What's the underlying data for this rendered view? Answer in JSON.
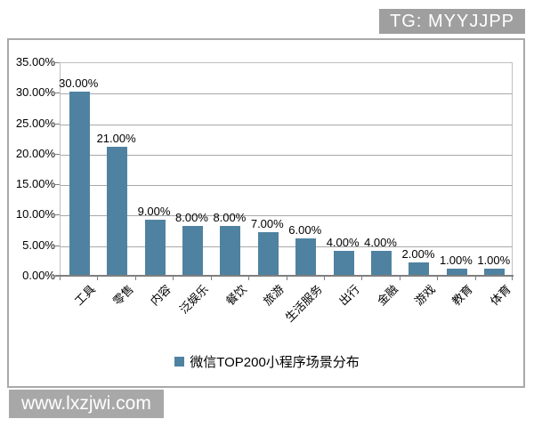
{
  "header": {
    "tg_badge": "TG: MYYJJPP"
  },
  "watermark": "www.lxzjwi.com",
  "colors": {
    "bar": "#4f82a1",
    "grid": "#a8a8a8",
    "axis": "#7f7f7f",
    "badge_bg": "#9f9f9f",
    "frame_border": "#a9a9a9"
  },
  "chart_data": {
    "type": "bar",
    "title": "",
    "categories": [
      "工具",
      "零售",
      "内容",
      "泛娱乐",
      "餐饮",
      "旅游",
      "生活服务",
      "出行",
      "金融",
      "游戏",
      "教育",
      "体育"
    ],
    "values": [
      30,
      21,
      9,
      8,
      8,
      7,
      6,
      4,
      4,
      2,
      1,
      1
    ],
    "value_labels": [
      "30.00%",
      "21.00%",
      "9.00%",
      "8.00%",
      "8.00%",
      "7.00%",
      "6.00%",
      "4.00%",
      "4.00%",
      "2.00%",
      "1.00%",
      "1.00%"
    ],
    "y_ticks": [
      "35.00%",
      "30.00%",
      "25.00%",
      "20.00%",
      "15.00%",
      "10.00%",
      "5.00%",
      "0.00%"
    ],
    "ylim": [
      0,
      35
    ],
    "y_step": 5,
    "grid": true,
    "legend": "微信TOP200小程序场景分布",
    "legend_position": "bottom",
    "xlabel": "",
    "ylabel": ""
  }
}
